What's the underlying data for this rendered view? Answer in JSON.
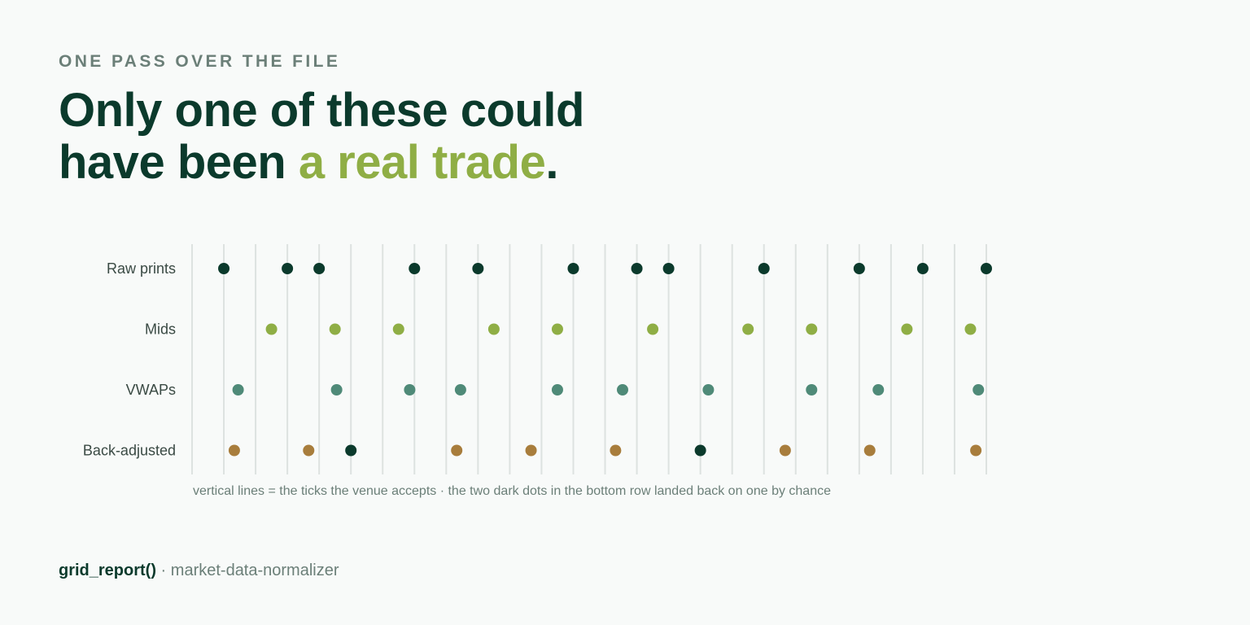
{
  "header": {
    "eyebrow": "ONE PASS OVER THE FILE",
    "title_line1": "Only one of these could",
    "title_line2_prefix": "have been ",
    "title_line2_accent": "a real trade",
    "title_line2_suffix": "."
  },
  "colors": {
    "dark": "#0b3a2c",
    "lime": "#8fae45",
    "teal": "#4f8a78",
    "ochre": "#a87d3c",
    "grid": "#dde2e0",
    "muted": "#6b7f78"
  },
  "chart_data": {
    "type": "scatter",
    "x_range": [
      -1,
      24
    ],
    "grid_ticks": [
      -1,
      0,
      1,
      2,
      3,
      4,
      5,
      6,
      7,
      8,
      9,
      10,
      11,
      12,
      13,
      14,
      15,
      16,
      17,
      18,
      19,
      20,
      21,
      22,
      23,
      24
    ],
    "caption": "vertical lines = the ticks the venue accepts · the two dark dots in the bottom row landed back on one by chance",
    "series": [
      {
        "name": "Raw prints",
        "color": "#0b3a2c",
        "values": [
          0,
          2,
          3,
          6,
          8,
          11,
          13,
          14,
          17,
          20,
          22,
          24
        ]
      },
      {
        "name": "Mids",
        "color": "#8fae45",
        "values": [
          1.5,
          3.5,
          5.5,
          8.5,
          10.5,
          13.5,
          16.5,
          18.5,
          21.5,
          23.5
        ]
      },
      {
        "name": "VWAPs",
        "color": "#4f8a78",
        "values": [
          0.45,
          3.55,
          5.85,
          7.45,
          10.5,
          12.55,
          15.25,
          18.5,
          20.6,
          23.75
        ]
      },
      {
        "name": "Back-adjusted",
        "color": "#a87d3c",
        "values": [
          0.33,
          2.67,
          4,
          7.33,
          9.67,
          12.33,
          15,
          17.67,
          20.33,
          23.67
        ],
        "on_grid_color": "#0b3a2c"
      }
    ]
  },
  "footer": {
    "function": "grid_report()",
    "separator": " · ",
    "package": "market-data-normalizer"
  }
}
